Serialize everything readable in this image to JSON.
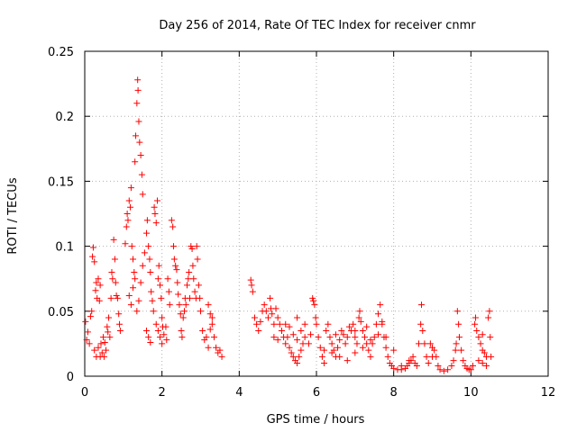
{
  "chart_data": {
    "type": "scatter",
    "title": "Day 256 of 2014, Rate Of TEC Index for receiver cnmr",
    "xlabel": "GPS time / hours",
    "ylabel": "ROTI / TECUs",
    "xlim": [
      0,
      12
    ],
    "ylim": [
      0,
      0.25
    ],
    "x_ticks": [
      0,
      2,
      4,
      6,
      8,
      10,
      12
    ],
    "x_tick_labels": [
      "0",
      "2",
      "4",
      "6",
      "8",
      "10",
      "12"
    ],
    "y_ticks": [
      0,
      0.05,
      0.1,
      0.15,
      0.2,
      0.25
    ],
    "y_tick_labels": [
      "0",
      "0.05",
      "0.1",
      "0.15",
      "0.2",
      "0.25"
    ],
    "grid": true,
    "marker": "+",
    "color": "#ff0000",
    "series": [
      {
        "name": "ROTI",
        "points": [
          [
            0.02,
            0.042
          ],
          [
            0.05,
            0.028
          ],
          [
            0.08,
            0.034
          ],
          [
            0.12,
            0.025
          ],
          [
            0.15,
            0.046
          ],
          [
            0.18,
            0.05
          ],
          [
            0.2,
            0.092
          ],
          [
            0.22,
            0.099
          ],
          [
            0.25,
            0.088
          ],
          [
            0.28,
            0.066
          ],
          [
            0.3,
            0.072
          ],
          [
            0.32,
            0.06
          ],
          [
            0.35,
            0.075
          ],
          [
            0.38,
            0.058
          ],
          [
            0.4,
            0.07
          ],
          [
            0.42,
            0.025
          ],
          [
            0.45,
            0.018
          ],
          [
            0.48,
            0.03
          ],
          [
            0.5,
            0.015
          ],
          [
            0.52,
            0.026
          ],
          [
            0.55,
            0.02
          ],
          [
            0.58,
            0.038
          ],
          [
            0.6,
            0.034
          ],
          [
            0.62,
            0.045
          ],
          [
            0.65,
            0.03
          ],
          [
            0.68,
            0.06
          ],
          [
            0.7,
            0.08
          ],
          [
            0.72,
            0.075
          ],
          [
            0.75,
            0.105
          ],
          [
            0.78,
            0.09
          ],
          [
            0.8,
            0.072
          ],
          [
            0.82,
            0.062
          ],
          [
            0.85,
            0.06
          ],
          [
            0.88,
            0.048
          ],
          [
            0.9,
            0.04
          ],
          [
            0.92,
            0.035
          ],
          [
            0.25,
            0.02
          ],
          [
            0.3,
            0.015
          ],
          [
            0.35,
            0.022
          ],
          [
            0.4,
            0.015
          ],
          [
            1.05,
            0.102
          ],
          [
            1.08,
            0.115
          ],
          [
            1.1,
            0.125
          ],
          [
            1.12,
            0.12
          ],
          [
            1.15,
            0.135
          ],
          [
            1.18,
            0.13
          ],
          [
            1.2,
            0.145
          ],
          [
            1.22,
            0.1
          ],
          [
            1.25,
            0.09
          ],
          [
            1.28,
            0.08
          ],
          [
            1.3,
            0.165
          ],
          [
            1.32,
            0.185
          ],
          [
            1.35,
            0.21
          ],
          [
            1.37,
            0.228
          ],
          [
            1.38,
            0.22
          ],
          [
            1.4,
            0.196
          ],
          [
            1.42,
            0.18
          ],
          [
            1.45,
            0.17
          ],
          [
            1.48,
            0.155
          ],
          [
            1.5,
            0.14
          ],
          [
            1.15,
            0.062
          ],
          [
            1.2,
            0.055
          ],
          [
            1.25,
            0.068
          ],
          [
            1.3,
            0.075
          ],
          [
            1.35,
            0.05
          ],
          [
            1.4,
            0.058
          ],
          [
            1.45,
            0.072
          ],
          [
            1.5,
            0.085
          ],
          [
            1.55,
            0.095
          ],
          [
            1.6,
            0.11
          ],
          [
            1.62,
            0.12
          ],
          [
            1.65,
            0.1
          ],
          [
            1.68,
            0.09
          ],
          [
            1.7,
            0.08
          ],
          [
            1.72,
            0.065
          ],
          [
            1.75,
            0.058
          ],
          [
            1.78,
            0.05
          ],
          [
            1.6,
            0.035
          ],
          [
            1.65,
            0.03
          ],
          [
            1.7,
            0.026
          ],
          [
            1.8,
            0.13
          ],
          [
            1.82,
            0.125
          ],
          [
            1.85,
            0.118
          ],
          [
            1.88,
            0.135
          ],
          [
            1.9,
            0.075
          ],
          [
            1.92,
            0.085
          ],
          [
            1.95,
            0.07
          ],
          [
            1.98,
            0.06
          ],
          [
            2.0,
            0.045
          ],
          [
            2.02,
            0.038
          ],
          [
            1.85,
            0.04
          ],
          [
            1.9,
            0.035
          ],
          [
            1.95,
            0.03
          ],
          [
            2.0,
            0.025
          ],
          [
            2.05,
            0.032
          ],
          [
            2.1,
            0.038
          ],
          [
            2.12,
            0.028
          ],
          [
            2.15,
            0.075
          ],
          [
            2.18,
            0.065
          ],
          [
            2.2,
            0.055
          ],
          [
            2.25,
            0.12
          ],
          [
            2.28,
            0.115
          ],
          [
            2.3,
            0.1
          ],
          [
            2.32,
            0.09
          ],
          [
            2.35,
            0.085
          ],
          [
            2.38,
            0.082
          ],
          [
            2.4,
            0.072
          ],
          [
            2.42,
            0.063
          ],
          [
            2.45,
            0.055
          ],
          [
            2.48,
            0.048
          ],
          [
            2.5,
            0.035
          ],
          [
            2.52,
            0.03
          ],
          [
            2.55,
            0.045
          ],
          [
            2.58,
            0.05
          ],
          [
            2.6,
            0.06
          ],
          [
            2.62,
            0.055
          ],
          [
            2.65,
            0.07
          ],
          [
            2.68,
            0.075
          ],
          [
            2.7,
            0.08
          ],
          [
            2.72,
            0.06
          ],
          [
            2.75,
            0.1
          ],
          [
            2.78,
            0.098
          ],
          [
            2.8,
            0.085
          ],
          [
            2.82,
            0.075
          ],
          [
            2.85,
            0.065
          ],
          [
            2.88,
            0.06
          ],
          [
            2.9,
            0.1
          ],
          [
            2.92,
            0.09
          ],
          [
            2.95,
            0.07
          ],
          [
            2.98,
            0.06
          ],
          [
            3.0,
            0.05
          ],
          [
            3.05,
            0.035
          ],
          [
            3.1,
            0.028
          ],
          [
            3.15,
            0.03
          ],
          [
            3.2,
            0.022
          ],
          [
            3.25,
            0.036
          ],
          [
            3.3,
            0.045
          ],
          [
            3.35,
            0.03
          ],
          [
            3.4,
            0.022
          ],
          [
            3.45,
            0.018
          ],
          [
            3.5,
            0.02
          ],
          [
            3.55,
            0.015
          ],
          [
            3.2,
            0.055
          ],
          [
            3.25,
            0.048
          ],
          [
            3.3,
            0.04
          ],
          [
            4.3,
            0.074
          ],
          [
            4.32,
            0.07
          ],
          [
            4.35,
            0.065
          ],
          [
            4.4,
            0.045
          ],
          [
            4.45,
            0.04
          ],
          [
            4.5,
            0.035
          ],
          [
            4.55,
            0.042
          ],
          [
            4.6,
            0.05
          ],
          [
            4.65,
            0.055
          ],
          [
            4.7,
            0.05
          ],
          [
            4.75,
            0.045
          ],
          [
            4.8,
            0.06
          ],
          [
            4.82,
            0.052
          ],
          [
            4.85,
            0.048
          ],
          [
            4.9,
            0.04
          ],
          [
            4.95,
            0.052
          ],
          [
            5.0,
            0.045
          ],
          [
            5.05,
            0.04
          ],
          [
            5.1,
            0.035
          ],
          [
            5.15,
            0.03
          ],
          [
            5.2,
            0.025
          ],
          [
            5.25,
            0.03
          ],
          [
            5.3,
            0.022
          ],
          [
            5.35,
            0.018
          ],
          [
            5.4,
            0.015
          ],
          [
            5.45,
            0.012
          ],
          [
            5.5,
            0.01
          ],
          [
            5.55,
            0.015
          ],
          [
            5.6,
            0.02
          ],
          [
            5.65,
            0.025
          ],
          [
            4.9,
            0.03
          ],
          [
            5.0,
            0.028
          ],
          [
            5.1,
            0.035
          ],
          [
            5.2,
            0.04
          ],
          [
            5.3,
            0.038
          ],
          [
            5.4,
            0.032
          ],
          [
            5.5,
            0.028
          ],
          [
            5.6,
            0.035
          ],
          [
            5.7,
            0.03
          ],
          [
            5.8,
            0.025
          ],
          [
            5.85,
            0.032
          ],
          [
            5.9,
            0.06
          ],
          [
            5.92,
            0.058
          ],
          [
            5.95,
            0.055
          ],
          [
            5.98,
            0.045
          ],
          [
            6.0,
            0.04
          ],
          [
            6.05,
            0.03
          ],
          [
            6.1,
            0.022
          ],
          [
            6.15,
            0.015
          ],
          [
            6.2,
            0.01
          ],
          [
            6.25,
            0.035
          ],
          [
            6.3,
            0.04
          ],
          [
            6.35,
            0.03
          ],
          [
            6.4,
            0.025
          ],
          [
            6.45,
            0.02
          ],
          [
            6.5,
            0.015
          ],
          [
            6.55,
            0.022
          ],
          [
            6.6,
            0.028
          ],
          [
            6.65,
            0.035
          ],
          [
            6.7,
            0.032
          ],
          [
            6.75,
            0.025
          ],
          [
            6.8,
            0.03
          ],
          [
            6.85,
            0.038
          ],
          [
            6.9,
            0.035
          ],
          [
            6.95,
            0.04
          ],
          [
            7.0,
            0.03
          ],
          [
            7.05,
            0.025
          ],
          [
            7.1,
            0.045
          ],
          [
            7.12,
            0.05
          ],
          [
            7.15,
            0.042
          ],
          [
            7.2,
            0.035
          ],
          [
            7.25,
            0.03
          ],
          [
            7.3,
            0.025
          ],
          [
            7.35,
            0.02
          ],
          [
            7.4,
            0.015
          ],
          [
            7.45,
            0.025
          ],
          [
            7.5,
            0.03
          ],
          [
            7.55,
            0.04
          ],
          [
            7.6,
            0.048
          ],
          [
            7.65,
            0.055
          ],
          [
            7.7,
            0.04
          ],
          [
            7.75,
            0.03
          ],
          [
            7.8,
            0.022
          ],
          [
            7.85,
            0.015
          ],
          [
            7.9,
            0.01
          ],
          [
            7.95,
            0.008
          ],
          [
            8.0,
            0.006
          ],
          [
            8.1,
            0.005
          ],
          [
            8.2,
            0.005
          ],
          [
            8.3,
            0.006
          ],
          [
            8.35,
            0.008
          ],
          [
            8.4,
            0.01
          ],
          [
            8.45,
            0.012
          ],
          [
            8.5,
            0.015
          ],
          [
            8.55,
            0.01
          ],
          [
            8.6,
            0.008
          ],
          [
            8.65,
            0.025
          ],
          [
            8.7,
            0.04
          ],
          [
            8.72,
            0.055
          ],
          [
            8.75,
            0.035
          ],
          [
            8.8,
            0.025
          ],
          [
            8.85,
            0.015
          ],
          [
            8.9,
            0.01
          ],
          [
            8.95,
            0.025
          ],
          [
            9.0,
            0.022
          ],
          [
            9.05,
            0.02
          ],
          [
            9.1,
            0.015
          ],
          [
            9.15,
            0.008
          ],
          [
            9.2,
            0.005
          ],
          [
            9.3,
            0.004
          ],
          [
            9.4,
            0.005
          ],
          [
            9.5,
            0.008
          ],
          [
            9.55,
            0.012
          ],
          [
            9.6,
            0.02
          ],
          [
            9.62,
            0.025
          ],
          [
            9.65,
            0.05
          ],
          [
            9.68,
            0.04
          ],
          [
            9.7,
            0.03
          ],
          [
            9.75,
            0.02
          ],
          [
            9.8,
            0.012
          ],
          [
            9.85,
            0.008
          ],
          [
            9.9,
            0.006
          ],
          [
            9.95,
            0.005
          ],
          [
            10.0,
            0.005
          ],
          [
            10.05,
            0.008
          ],
          [
            10.1,
            0.04
          ],
          [
            10.12,
            0.045
          ],
          [
            10.15,
            0.035
          ],
          [
            10.2,
            0.03
          ],
          [
            10.25,
            0.025
          ],
          [
            10.3,
            0.02
          ],
          [
            10.35,
            0.018
          ],
          [
            10.4,
            0.015
          ],
          [
            10.45,
            0.045
          ],
          [
            10.48,
            0.05
          ],
          [
            10.5,
            0.03
          ],
          [
            10.52,
            0.015
          ],
          [
            10.2,
            0.012
          ],
          [
            10.3,
            0.01
          ],
          [
            10.4,
            0.008
          ],
          [
            6.2,
            0.02
          ],
          [
            6.4,
            0.018
          ],
          [
            6.6,
            0.015
          ],
          [
            6.8,
            0.012
          ],
          [
            7.0,
            0.018
          ],
          [
            7.2,
            0.022
          ],
          [
            7.4,
            0.028
          ],
          [
            7.6,
            0.032
          ],
          [
            7.8,
            0.03
          ],
          [
            8.0,
            0.02
          ],
          [
            5.5,
            0.045
          ],
          [
            5.7,
            0.04
          ],
          [
            6.5,
            0.032
          ],
          [
            7.0,
            0.035
          ],
          [
            7.3,
            0.038
          ],
          [
            7.7,
            0.042
          ],
          [
            8.2,
            0.008
          ],
          [
            8.4,
            0.012
          ],
          [
            9.0,
            0.015
          ],
          [
            10.3,
            0.032
          ]
        ]
      }
    ]
  }
}
